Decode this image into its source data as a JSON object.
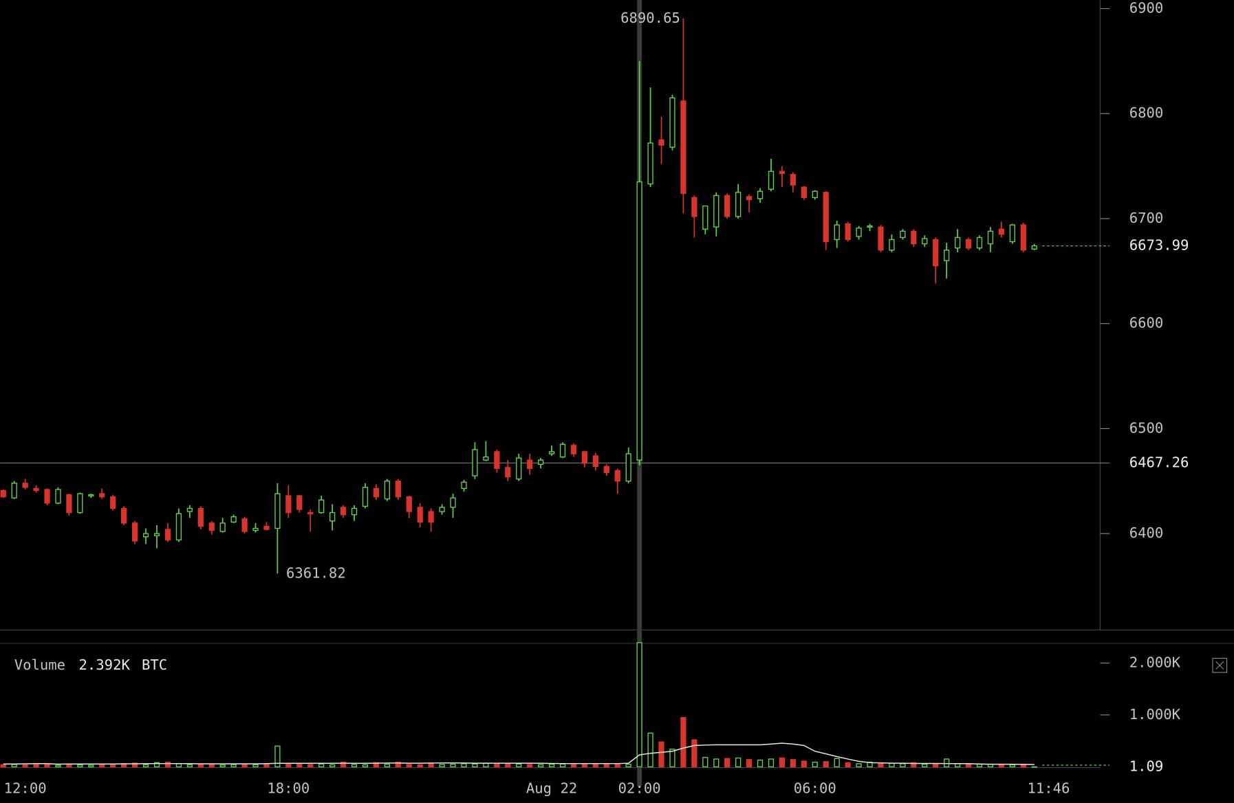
{
  "chart_data": {
    "type": "candlestick",
    "up_color": "#5fd34a",
    "down_color": "#d8342c",
    "xlim": [
      -0.29,
      100
    ],
    "xticks": [
      {
        "value": 2,
        "label": "12:00"
      },
      {
        "value": 26,
        "label": "18:00"
      },
      {
        "value": 50,
        "label": "Aug 22"
      },
      {
        "value": 58,
        "label": "02:00"
      },
      {
        "value": 74,
        "label": "06:00"
      },
      {
        "value": 95.3,
        "label": "11:46"
      }
    ],
    "ylim": [
      6308.2,
      6908.2
    ],
    "yticks": [
      6400,
      6500,
      6600,
      6700,
      6800,
      6900
    ],
    "open": [
      6441,
      6434,
      6448,
      6443,
      6442,
      6429,
      6437,
      6420,
      6436,
      6438,
      6435,
      6424,
      6410,
      6397,
      6398,
      6404,
      6394,
      6421,
      6424,
      6410,
      6402,
      6411,
      6414,
      6403,
      6407,
      6405,
      6436,
      6436,
      6420,
      6420,
      6412,
      6425,
      6418,
      6426,
      6443,
      6433,
      6450,
      6435,
      6425,
      6421,
      6421,
      6425,
      6443,
      6455,
      6470,
      6478,
      6463,
      6452,
      6470,
      6466,
      6476,
      6473,
      6484,
      6478,
      6474,
      6464,
      6460,
      6450,
      6470,
      6733,
      6775,
      6768,
      6812,
      6720,
      6690,
      6692,
      6722,
      6702,
      6721,
      6719,
      6728,
      6745,
      6742,
      6730,
      6720,
      6725,
      6680,
      6695,
      6683,
      6692,
      6692,
      6670,
      6682,
      6688,
      6676,
      6680,
      6660,
      6672,
      6680,
      6672,
      6676,
      6690,
      6678,
      6694,
      6671
    ],
    "high": [
      6442,
      6450,
      6452,
      6446,
      6443,
      6444,
      6438,
      6439,
      6438,
      6443,
      6437,
      6426,
      6412,
      6405,
      6408,
      6410,
      6424,
      6427,
      6426,
      6412,
      6415,
      6418,
      6416,
      6410,
      6411,
      6448,
      6446,
      6437,
      6423,
      6436,
      6428,
      6427,
      6427,
      6448,
      6447,
      6452,
      6452,
      6436,
      6429,
      6424,
      6428,
      6438,
      6451,
      6487,
      6488,
      6480,
      6470,
      6476,
      6476,
      6472,
      6484,
      6487,
      6486,
      6479,
      6477,
      6466,
      6462,
      6482,
      6850,
      6825,
      6797,
      6818,
      6890.65,
      6722,
      6710,
      6725,
      6724,
      6733,
      6723,
      6729,
      6757,
      6750,
      6744,
      6731,
      6727,
      6726,
      6698,
      6697,
      6693,
      6695,
      6694,
      6685,
      6690,
      6690,
      6684,
      6682,
      6677,
      6690,
      6682,
      6684,
      6692,
      6697,
      6695,
      6696,
      6676
    ],
    "low": [
      6434,
      6433,
      6442,
      6439,
      6427,
      6428,
      6417,
      6419,
      6434,
      6433,
      6422,
      6408,
      6390,
      6390,
      6386,
      6392,
      6392,
      6415,
      6404,
      6399,
      6401,
      6410,
      6400,
      6401,
      6403,
      6361.82,
      6415,
      6420,
      6402,
      6419,
      6403,
      6415,
      6412,
      6424,
      6432,
      6431,
      6432,
      6415,
      6406,
      6402,
      6418,
      6415,
      6440,
      6452,
      6469,
      6458,
      6450,
      6450,
      6456,
      6462,
      6474,
      6472,
      6473,
      6463,
      6460,
      6455,
      6438,
      6448,
      6465,
      6730,
      6752,
      6765,
      6705,
      6682,
      6685,
      6683,
      6700,
      6700,
      6706,
      6715,
      6726,
      6730,
      6725,
      6718,
      6718,
      6670,
      6672,
      6678,
      6680,
      6688,
      6668,
      6668,
      6680,
      6673,
      6673,
      6638,
      6643,
      6668,
      6670,
      6670,
      6668,
      6682,
      6676,
      6668,
      6670
    ],
    "close": [
      6435,
      6448,
      6444,
      6441,
      6429,
      6442,
      6420,
      6438,
      6437,
      6435,
      6424,
      6410,
      6393,
      6400,
      6400,
      6394,
      6419,
      6424,
      6407,
      6403,
      6410,
      6416,
      6402,
      6405,
      6404,
      6438,
      6420,
      6423,
      6419,
      6432,
      6420,
      6418,
      6424,
      6444,
      6435,
      6450,
      6435,
      6421,
      6411,
      6411,
      6425,
      6434,
      6449,
      6480,
      6473,
      6462,
      6454,
      6472,
      6462,
      6470,
      6478,
      6485,
      6476,
      6467,
      6464,
      6458,
      6450,
      6476,
      6735,
      6772,
      6770,
      6815,
      6724,
      6702,
      6712,
      6722,
      6702,
      6725,
      6718,
      6726,
      6745,
      6743,
      6732,
      6720,
      6726,
      6678,
      6694,
      6680,
      6691,
      6693,
      6670,
      6680,
      6688,
      6676,
      6681,
      6655,
      6670,
      6682,
      6672,
      6682,
      6688,
      6685,
      6694,
      6670,
      6673.99
    ],
    "volume": [
      40,
      45,
      35,
      40,
      50,
      30,
      45,
      35,
      30,
      40,
      50,
      60,
      70,
      40,
      80,
      90,
      60,
      40,
      50,
      45,
      35,
      40,
      50,
      40,
      45,
      400,
      60,
      50,
      45,
      55,
      40,
      90,
      45,
      40,
      80,
      50,
      90,
      45,
      40,
      60,
      45,
      50,
      60,
      55,
      70,
      60,
      50,
      55,
      45,
      40,
      50,
      55,
      45,
      60,
      50,
      55,
      60,
      50,
      2392,
      650,
      480,
      340,
      950,
      520,
      180,
      150,
      160,
      170,
      140,
      130,
      150,
      170,
      140,
      110,
      90,
      100,
      160,
      80,
      60,
      90,
      70,
      70,
      60,
      80,
      50,
      60,
      150,
      60,
      60,
      50,
      50,
      50,
      40,
      50,
      1.09
    ],
    "volume_ma": [
      55,
      55,
      58,
      60,
      60,
      52,
      55,
      55,
      55,
      55,
      55,
      58,
      58,
      60,
      62,
      62,
      62,
      60,
      58,
      58,
      58,
      58,
      58,
      58,
      60,
      68,
      68,
      68,
      68,
      68,
      68,
      68,
      68,
      68,
      70,
      72,
      72,
      70,
      70,
      72,
      75,
      75,
      72,
      70,
      70,
      70,
      70,
      70,
      70,
      68,
      65,
      62,
      62,
      62,
      62,
      62,
      62,
      70,
      230,
      260,
      280,
      300,
      360,
      410,
      420,
      425,
      425,
      425,
      425,
      425,
      440,
      455,
      440,
      410,
      300,
      250,
      197,
      150,
      106,
      80,
      76,
      70,
      70,
      65,
      65,
      65,
      62,
      60,
      60,
      55,
      50,
      50,
      50,
      48,
      45
    ],
    "volume_ma_color": "#e6e6e6",
    "volume_ylim": [
      0,
      2379
    ],
    "volume_yticks": [
      {
        "value": 1000,
        "label": "1.000K"
      },
      {
        "value": 2000,
        "label": "2.000K"
      }
    ],
    "volume_title": "Volume",
    "volume_unit": "BTC",
    "crosshair": {
      "index": 58,
      "price": 6467.26,
      "volume_label": "2.392K"
    },
    "high_index": 62,
    "low_index": 25
  }
}
